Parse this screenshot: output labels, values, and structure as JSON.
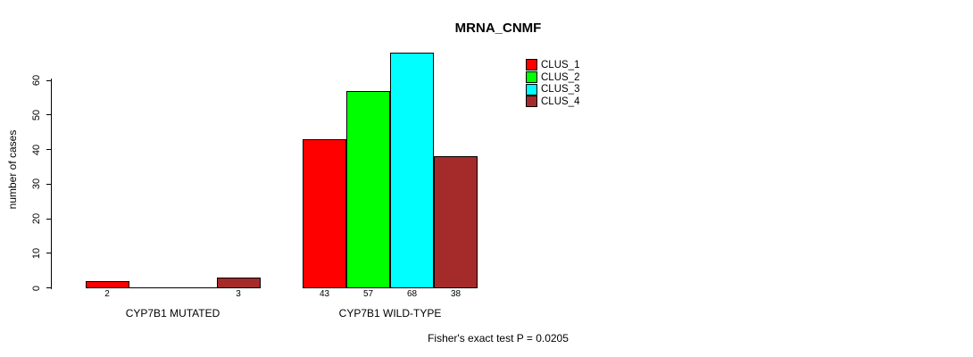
{
  "chart_data": {
    "type": "bar",
    "title": "MRNA_CNMF",
    "xlabel": "",
    "ylabel": "number of cases",
    "categories": [
      "CYP7B1 MUTATED",
      "CYP7B1 WILD-TYPE"
    ],
    "series": [
      {
        "name": "CLUS_1",
        "color": "#FF0000",
        "values": [
          2,
          43
        ]
      },
      {
        "name": "CLUS_2",
        "color": "#00FF00",
        "values": [
          0,
          57
        ]
      },
      {
        "name": "CLUS_3",
        "color": "#00FFFF",
        "values": [
          0,
          68
        ]
      },
      {
        "name": "CLUS_4",
        "color": "#A52A2A",
        "values": [
          3,
          38
        ]
      }
    ],
    "ylim": [
      0,
      60
    ],
    "yticks": [
      0,
      10,
      20,
      30,
      40,
      50,
      60
    ],
    "grid": false,
    "bar_value_labels": true,
    "zero_bars_unlabeled": true,
    "legend_position": "top-right",
    "annotation": "Fisher's exact test P = 0.0205"
  },
  "colors": {
    "background": "#FFFFFF",
    "axis": "#000000",
    "text": "#000000",
    "bar_border": "#000000"
  }
}
